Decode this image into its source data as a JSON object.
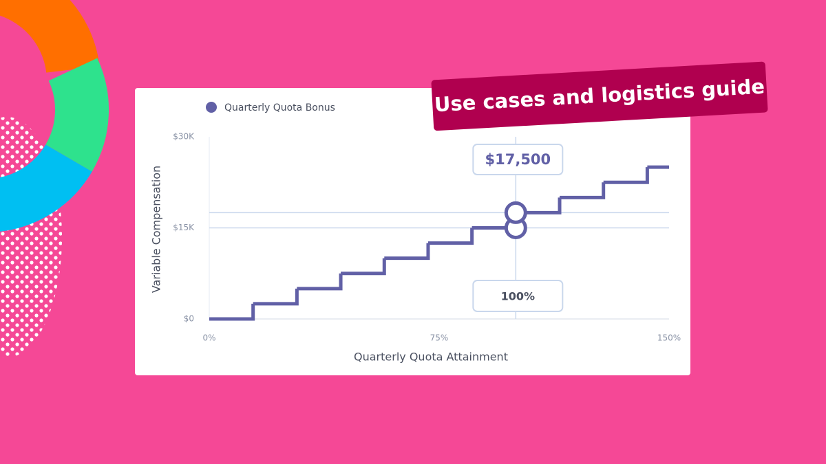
{
  "chart_data": {
    "type": "step",
    "banner": "Use cases and logistics guide",
    "x_label": "Quarterly Quota Attainment",
    "y_label": "Variable Compensation",
    "series": [
      {
        "name": "Quarterly Quota Bonus",
        "color": "#6160a6",
        "x": [
          0,
          14.3,
          28.6,
          42.9,
          57.1,
          71.4,
          85.7,
          100,
          114.3,
          128.6,
          142.9
        ],
        "values": [
          0,
          2500,
          5000,
          7500,
          10000,
          12500,
          15000,
          17500,
          20000,
          22500,
          25000
        ]
      }
    ],
    "xlim": [
      0,
      150
    ],
    "ylim": [
      0,
      30000
    ],
    "xticks": [
      {
        "value": 0,
        "label": "0%"
      },
      {
        "value": 75,
        "label": "75%"
      },
      {
        "value": 150,
        "label": "150%"
      }
    ],
    "yticks": [
      {
        "value": 0,
        "label": "$0"
      },
      {
        "value": 15000,
        "label": "$15K"
      },
      {
        "value": 30000,
        "label": "$30K"
      }
    ],
    "grid": false,
    "crosshair": {
      "x": {
        "value": 100,
        "label": "100%"
      },
      "y_low": 15000,
      "y_high": {
        "value": 17500,
        "label": "$17,500"
      }
    }
  }
}
